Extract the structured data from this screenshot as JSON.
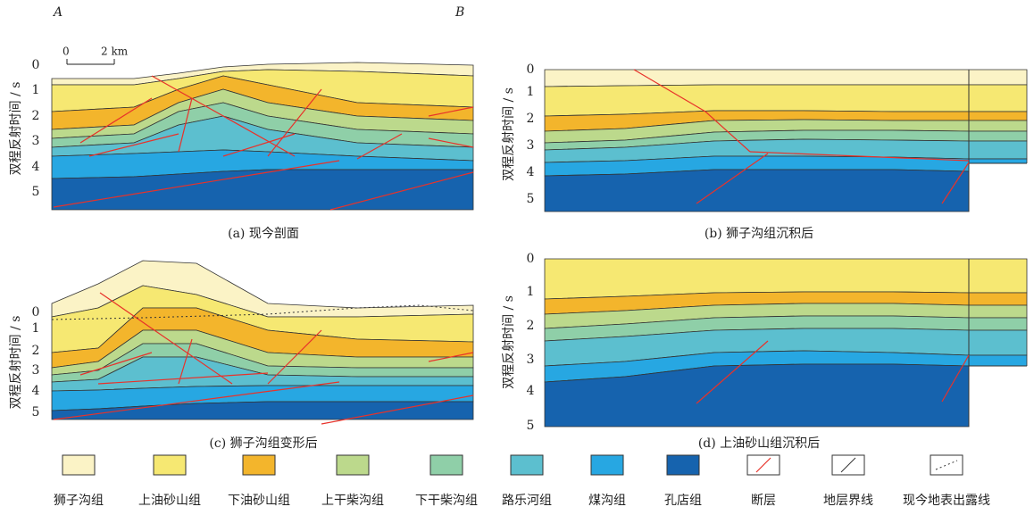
{
  "panels": [
    {
      "axis_label": "双程反射时间 / s",
      "ticks": [
        0,
        1,
        2,
        3,
        4,
        5
      ],
      "caption": "(a) 现今剖面"
    },
    {
      "axis_label": "双程反射时间 / s",
      "ticks": [
        0,
        1,
        2,
        3,
        4,
        5
      ],
      "caption": "(b) 狮子沟组沉积后"
    },
    {
      "axis_label": "双程反射时间 / s",
      "ticks": [
        0,
        1,
        2,
        3,
        4,
        5
      ],
      "caption": "(c) 狮子沟组变形后"
    },
    {
      "axis_label": "双程反射时间 / s",
      "ticks": [
        0,
        1,
        2,
        3,
        4,
        5
      ],
      "caption": "(d) 上油砂山组沉积后"
    }
  ],
  "section_ends": [
    "A",
    "B"
  ],
  "scale_bar": {
    "start": "0",
    "end": "2 km"
  },
  "legend": [
    "狮子沟组",
    "上油砂山组",
    "下油砂山组",
    "上干柴沟组",
    "下干柴沟组",
    "路乐河组",
    "煤沟组",
    "孔店组",
    "断层",
    "地层界线",
    "现今地表出露线"
  ]
}
